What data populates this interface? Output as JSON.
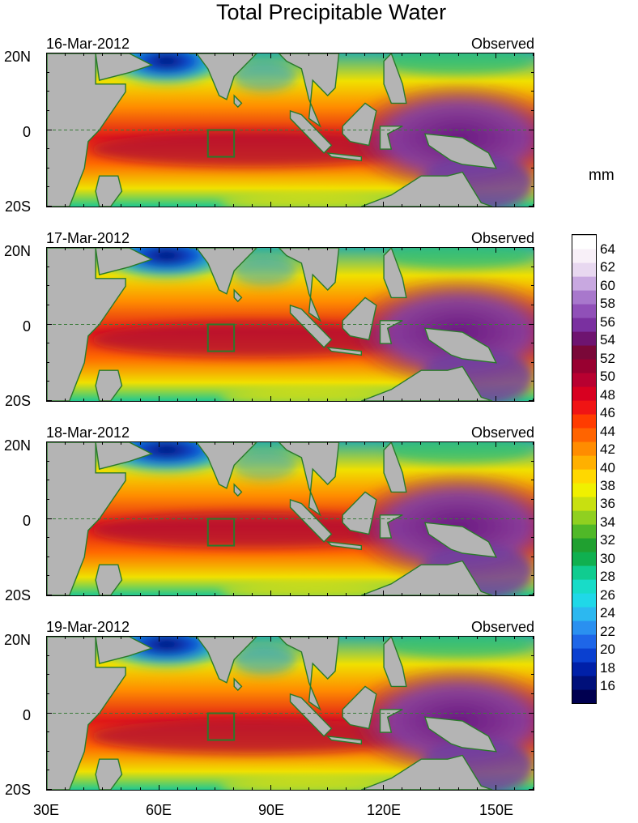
{
  "title": "Total Precipitable Water",
  "units": "mm",
  "observed_label": "Observed",
  "panels": [
    {
      "date": "16-Mar-2012"
    },
    {
      "date": "17-Mar-2012"
    },
    {
      "date": "18-Mar-2012"
    },
    {
      "date": "19-Mar-2012"
    }
  ],
  "y_tick_labels": [
    "20N",
    "0",
    "20S"
  ],
  "x_tick_labels": [
    "30E",
    "60E",
    "90E",
    "120E",
    "150E"
  ],
  "colorbar": {
    "labels": [
      "64",
      "62",
      "60",
      "58",
      "56",
      "54",
      "52",
      "50",
      "48",
      "46",
      "44",
      "42",
      "40",
      "38",
      "36",
      "34",
      "32",
      "30",
      "28",
      "26",
      "24",
      "22",
      "20",
      "18",
      "16"
    ],
    "range": [
      14,
      66
    ],
    "colors": [
      "#000050",
      "#00107a",
      "#0020a8",
      "#0a40d0",
      "#1e66e8",
      "#2a90f0",
      "#2cb8f0",
      "#20d8e8",
      "#18dcc8",
      "#10cc90",
      "#10b050",
      "#20a030",
      "#50b828",
      "#90d020",
      "#c8e010",
      "#f0f000",
      "#ffd800",
      "#ffb000",
      "#ff8c00",
      "#ff6400",
      "#ff3c00",
      "#f01414",
      "#d80020",
      "#b80030",
      "#980030",
      "#7a0838",
      "#6e1470",
      "#7a30a0",
      "#9050b8",
      "#a878cc",
      "#c8a8e0",
      "#e8d8f0",
      "#f8f0f8",
      "#ffffff"
    ]
  },
  "map_colors": {
    "land": "#b4b4b4",
    "coast": "#2a7a2a",
    "box": "#2a7a2a",
    "equator": "#3a7a3a"
  }
}
